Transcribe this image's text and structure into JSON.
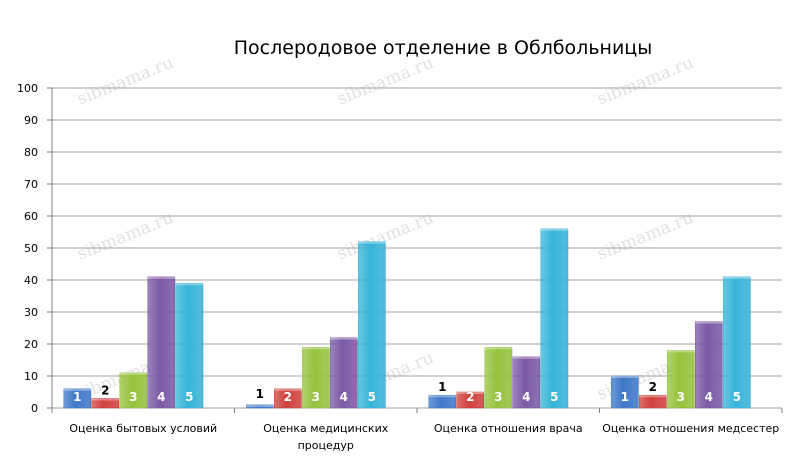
{
  "chart_data": {
    "type": "bar",
    "title": "Послеродовое отделение в Облбольницы",
    "categories": [
      [
        "Оценка бытовых условий"
      ],
      [
        "Оценка медицинских",
        "процедур"
      ],
      [
        "Оценка отношения врача"
      ],
      [
        "Оценка отношения медсестер"
      ]
    ],
    "series": [
      {
        "name": "1",
        "color": "#3d78c8",
        "values": [
          6,
          1,
          4,
          10
        ]
      },
      {
        "name": "2",
        "color": "#d0413c",
        "values": [
          3,
          6,
          5,
          4
        ]
      },
      {
        "name": "3",
        "color": "#96c23c",
        "values": [
          11,
          19,
          19,
          18
        ]
      },
      {
        "name": "4",
        "color": "#7b5aa6",
        "values": [
          41,
          22,
          16,
          27
        ]
      },
      {
        "name": "5",
        "color": "#37b4d8",
        "values": [
          39,
          52,
          56,
          41
        ]
      }
    ],
    "ylim": [
      0,
      100
    ],
    "yticks": [
      "0",
      "10",
      "20",
      "30",
      "40",
      "50",
      "60",
      "70",
      "80",
      "90",
      "100"
    ],
    "grid": true,
    "legend": "none",
    "xlabel": "",
    "ylabel": ""
  },
  "watermark": "sibmama.ru"
}
